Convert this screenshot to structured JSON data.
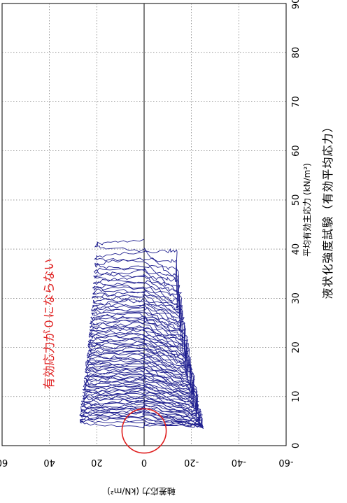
{
  "chart_data": {
    "type": "line",
    "caption": "液状化強度試験（有効平均応力）",
    "xlabel": "平均有効主応力 (kN/m²)",
    "ylabel": "軸差応力 (kN/m²)",
    "xlim": [
      0,
      90
    ],
    "ylim": [
      -60,
      60
    ],
    "x_ticks": [
      "0",
      "10",
      "20",
      "30",
      "40",
      "50",
      "60",
      "70",
      "80",
      "90"
    ],
    "y_ticks": [
      "60",
      "40",
      "20",
      "0",
      "-20",
      "-40",
      "-60"
    ],
    "grid": true,
    "series": [
      {
        "color": "#1f1f8f",
        "x_start": 42,
        "x_end": 4,
        "tau_pos_peak": 27,
        "tau_neg_peak": -25
      }
    ],
    "annotation": {
      "text": "有効応力が０にならない",
      "color": "#e02020",
      "circle_center": [
        3,
        0
      ],
      "circle_radius": 4.5
    }
  }
}
